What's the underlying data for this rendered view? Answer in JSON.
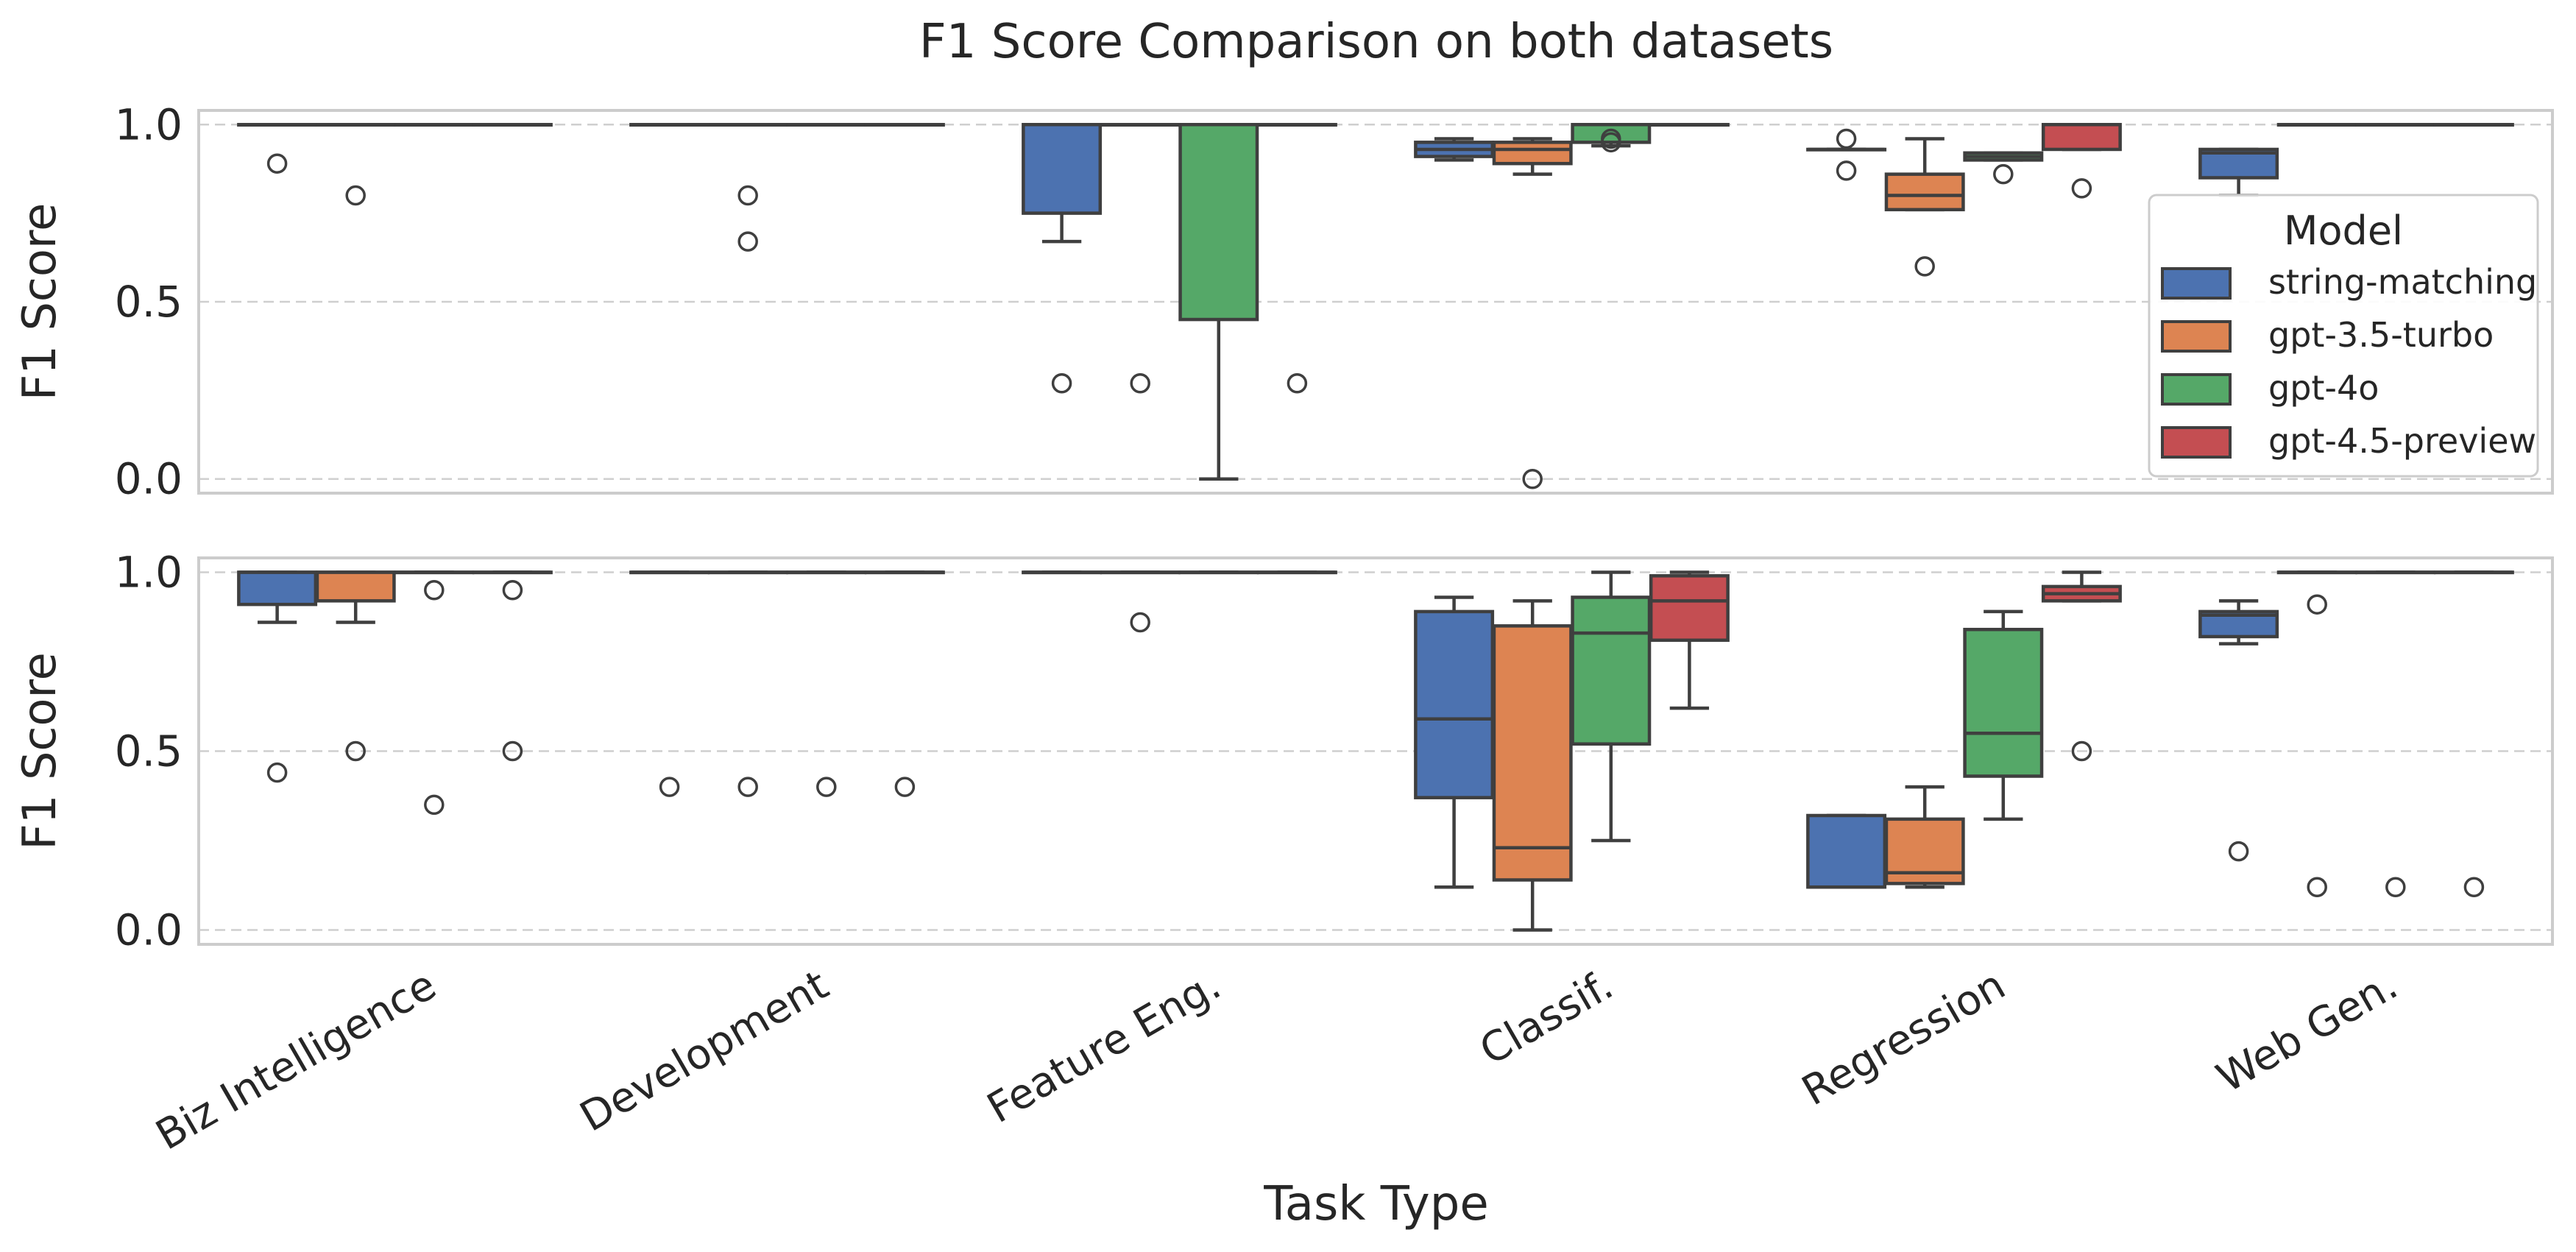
{
  "chart_data": {
    "type": "box",
    "title": "F1 Score Comparison on both datasets",
    "xlabel": "Task Type",
    "ylabel": "F1 Score",
    "categories": [
      "Biz Intelligence",
      "Development",
      "Feature Eng.",
      "Classif.",
      "Regression",
      "Web Gen."
    ],
    "yticks": [
      "0.0",
      "0.5",
      "1.0"
    ],
    "ylim": [
      -0.04,
      1.04
    ],
    "grid": "horizontal dashed",
    "legend": {
      "title": "Model",
      "placement": "upper-right of top panel",
      "entries": [
        "string-matching",
        "gpt-3.5-turbo",
        "gpt-4o",
        "gpt-4.5-preview"
      ]
    },
    "series_colors": {
      "string-matching": "#4c72b0",
      "gpt-3.5-turbo": "#dd8452",
      "gpt-4o": "#55a868",
      "gpt-4.5-preview": "#c44e52"
    },
    "panels": [
      {
        "name": "top",
        "boxes": [
          {
            "category": "Biz Intelligence",
            "series": "string-matching",
            "q1": 1.0,
            "median": 1.0,
            "q3": 1.0,
            "whislo": 1.0,
            "whishi": 1.0,
            "fliers": [
              0.89
            ]
          },
          {
            "category": "Biz Intelligence",
            "series": "gpt-3.5-turbo",
            "q1": 1.0,
            "median": 1.0,
            "q3": 1.0,
            "whislo": 1.0,
            "whishi": 1.0,
            "fliers": [
              0.8
            ]
          },
          {
            "category": "Biz Intelligence",
            "series": "gpt-4o",
            "q1": 1.0,
            "median": 1.0,
            "q3": 1.0,
            "whislo": 1.0,
            "whishi": 1.0,
            "fliers": []
          },
          {
            "category": "Biz Intelligence",
            "series": "gpt-4.5-preview",
            "q1": 1.0,
            "median": 1.0,
            "q3": 1.0,
            "whislo": 1.0,
            "whishi": 1.0,
            "fliers": []
          },
          {
            "category": "Development",
            "series": "string-matching",
            "q1": 1.0,
            "median": 1.0,
            "q3": 1.0,
            "whislo": 1.0,
            "whishi": 1.0,
            "fliers": []
          },
          {
            "category": "Development",
            "series": "gpt-3.5-turbo",
            "q1": 1.0,
            "median": 1.0,
            "q3": 1.0,
            "whislo": 1.0,
            "whishi": 1.0,
            "fliers": [
              0.8,
              0.67
            ]
          },
          {
            "category": "Development",
            "series": "gpt-4o",
            "q1": 1.0,
            "median": 1.0,
            "q3": 1.0,
            "whislo": 1.0,
            "whishi": 1.0,
            "fliers": []
          },
          {
            "category": "Development",
            "series": "gpt-4.5-preview",
            "q1": 1.0,
            "median": 1.0,
            "q3": 1.0,
            "whislo": 1.0,
            "whishi": 1.0,
            "fliers": []
          },
          {
            "category": "Feature Eng.",
            "series": "string-matching",
            "q1": 0.75,
            "median": 1.0,
            "q3": 1.0,
            "whislo": 0.67,
            "whishi": 1.0,
            "fliers": [
              0.27
            ]
          },
          {
            "category": "Feature Eng.",
            "series": "gpt-3.5-turbo",
            "q1": 1.0,
            "median": 1.0,
            "q3": 1.0,
            "whislo": 1.0,
            "whishi": 1.0,
            "fliers": [
              0.27
            ]
          },
          {
            "category": "Feature Eng.",
            "series": "gpt-4o",
            "q1": 0.45,
            "median": 1.0,
            "q3": 1.0,
            "whislo": 0.0,
            "whishi": 1.0,
            "fliers": []
          },
          {
            "category": "Feature Eng.",
            "series": "gpt-4.5-preview",
            "q1": 1.0,
            "median": 1.0,
            "q3": 1.0,
            "whislo": 1.0,
            "whishi": 1.0,
            "fliers": [
              0.27
            ]
          },
          {
            "category": "Classif.",
            "series": "string-matching",
            "q1": 0.91,
            "median": 0.93,
            "q3": 0.95,
            "whislo": 0.9,
            "whishi": 0.96,
            "fliers": []
          },
          {
            "category": "Classif.",
            "series": "gpt-3.5-turbo",
            "q1": 0.89,
            "median": 0.93,
            "q3": 0.95,
            "whislo": 0.86,
            "whishi": 0.96,
            "fliers": [
              0.0
            ]
          },
          {
            "category": "Classif.",
            "series": "gpt-4o",
            "q1": 0.95,
            "median": 1.0,
            "q3": 1.0,
            "whislo": 0.94,
            "whishi": 1.0,
            "fliers": [
              0.96,
              0.95
            ]
          },
          {
            "category": "Classif.",
            "series": "gpt-4.5-preview",
            "q1": 1.0,
            "median": 1.0,
            "q3": 1.0,
            "whislo": 1.0,
            "whishi": 1.0,
            "fliers": []
          },
          {
            "category": "Regression",
            "series": "string-matching",
            "q1": 0.93,
            "median": 0.93,
            "q3": 0.93,
            "whislo": 0.93,
            "whishi": 0.93,
            "fliers": [
              0.96,
              0.87
            ]
          },
          {
            "category": "Regression",
            "series": "gpt-3.5-turbo",
            "q1": 0.76,
            "median": 0.8,
            "q3": 0.86,
            "whislo": 0.76,
            "whishi": 0.96,
            "fliers": [
              0.6
            ]
          },
          {
            "category": "Regression",
            "series": "gpt-4o",
            "q1": 0.9,
            "median": 0.91,
            "q3": 0.92,
            "whislo": 0.9,
            "whishi": 0.92,
            "fliers": [
              0.86
            ]
          },
          {
            "category": "Regression",
            "series": "gpt-4.5-preview",
            "q1": 0.93,
            "median": 1.0,
            "q3": 1.0,
            "whislo": 0.93,
            "whishi": 1.0,
            "fliers": [
              0.82
            ]
          },
          {
            "category": "Web Gen.",
            "series": "string-matching",
            "q1": 0.85,
            "median": 0.92,
            "q3": 0.93,
            "whislo": 0.8,
            "whishi": 0.93,
            "fliers": []
          },
          {
            "category": "Web Gen.",
            "series": "gpt-3.5-turbo",
            "q1": 1.0,
            "median": 1.0,
            "q3": 1.0,
            "whislo": 1.0,
            "whishi": 1.0,
            "fliers": []
          },
          {
            "category": "Web Gen.",
            "series": "gpt-4o",
            "q1": 1.0,
            "median": 1.0,
            "q3": 1.0,
            "whislo": 1.0,
            "whishi": 1.0,
            "fliers": []
          },
          {
            "category": "Web Gen.",
            "series": "gpt-4.5-preview",
            "q1": 1.0,
            "median": 1.0,
            "q3": 1.0,
            "whislo": 1.0,
            "whishi": 1.0,
            "fliers": []
          }
        ]
      },
      {
        "name": "bottom",
        "boxes": [
          {
            "category": "Biz Intelligence",
            "series": "string-matching",
            "q1": 0.91,
            "median": 1.0,
            "q3": 1.0,
            "whislo": 0.86,
            "whishi": 1.0,
            "fliers": [
              0.44
            ]
          },
          {
            "category": "Biz Intelligence",
            "series": "gpt-3.5-turbo",
            "q1": 0.92,
            "median": 1.0,
            "q3": 1.0,
            "whislo": 0.86,
            "whishi": 1.0,
            "fliers": [
              0.5
            ]
          },
          {
            "category": "Biz Intelligence",
            "series": "gpt-4o",
            "q1": 1.0,
            "median": 1.0,
            "q3": 1.0,
            "whislo": 1.0,
            "whishi": 1.0,
            "fliers": [
              0.95,
              0.35
            ]
          },
          {
            "category": "Biz Intelligence",
            "series": "gpt-4.5-preview",
            "q1": 1.0,
            "median": 1.0,
            "q3": 1.0,
            "whislo": 1.0,
            "whishi": 1.0,
            "fliers": [
              0.95,
              0.5
            ]
          },
          {
            "category": "Development",
            "series": "string-matching",
            "q1": 1.0,
            "median": 1.0,
            "q3": 1.0,
            "whislo": 1.0,
            "whishi": 1.0,
            "fliers": [
              0.4
            ]
          },
          {
            "category": "Development",
            "series": "gpt-3.5-turbo",
            "q1": 1.0,
            "median": 1.0,
            "q3": 1.0,
            "whislo": 1.0,
            "whishi": 1.0,
            "fliers": [
              0.4
            ]
          },
          {
            "category": "Development",
            "series": "gpt-4o",
            "q1": 1.0,
            "median": 1.0,
            "q3": 1.0,
            "whislo": 1.0,
            "whishi": 1.0,
            "fliers": [
              0.4
            ]
          },
          {
            "category": "Development",
            "series": "gpt-4.5-preview",
            "q1": 1.0,
            "median": 1.0,
            "q3": 1.0,
            "whislo": 1.0,
            "whishi": 1.0,
            "fliers": [
              0.4
            ]
          },
          {
            "category": "Feature Eng.",
            "series": "string-matching",
            "q1": 1.0,
            "median": 1.0,
            "q3": 1.0,
            "whislo": 1.0,
            "whishi": 1.0,
            "fliers": []
          },
          {
            "category": "Feature Eng.",
            "series": "gpt-3.5-turbo",
            "q1": 1.0,
            "median": 1.0,
            "q3": 1.0,
            "whislo": 1.0,
            "whishi": 1.0,
            "fliers": [
              0.86
            ]
          },
          {
            "category": "Feature Eng.",
            "series": "gpt-4o",
            "q1": 1.0,
            "median": 1.0,
            "q3": 1.0,
            "whislo": 1.0,
            "whishi": 1.0,
            "fliers": []
          },
          {
            "category": "Feature Eng.",
            "series": "gpt-4.5-preview",
            "q1": 1.0,
            "median": 1.0,
            "q3": 1.0,
            "whislo": 1.0,
            "whishi": 1.0,
            "fliers": []
          },
          {
            "category": "Classif.",
            "series": "string-matching",
            "q1": 0.37,
            "median": 0.59,
            "q3": 0.89,
            "whislo": 0.12,
            "whishi": 0.93,
            "fliers": []
          },
          {
            "category": "Classif.",
            "series": "gpt-3.5-turbo",
            "q1": 0.14,
            "median": 0.23,
            "q3": 0.85,
            "whislo": 0.0,
            "whishi": 0.92,
            "fliers": []
          },
          {
            "category": "Classif.",
            "series": "gpt-4o",
            "q1": 0.52,
            "median": 0.83,
            "q3": 0.93,
            "whislo": 0.25,
            "whishi": 1.0,
            "fliers": []
          },
          {
            "category": "Classif.",
            "series": "gpt-4.5-preview",
            "q1": 0.81,
            "median": 0.92,
            "q3": 0.99,
            "whislo": 0.62,
            "whishi": 1.0,
            "fliers": []
          },
          {
            "category": "Regression",
            "series": "string-matching",
            "q1": 0.12,
            "median": 0.12,
            "q3": 0.32,
            "whislo": 0.12,
            "whishi": 0.32,
            "fliers": []
          },
          {
            "category": "Regression",
            "series": "gpt-3.5-turbo",
            "q1": 0.13,
            "median": 0.16,
            "q3": 0.31,
            "whislo": 0.12,
            "whishi": 0.4,
            "fliers": []
          },
          {
            "category": "Regression",
            "series": "gpt-4o",
            "q1": 0.43,
            "median": 0.55,
            "q3": 0.84,
            "whislo": 0.31,
            "whishi": 0.89,
            "fliers": []
          },
          {
            "category": "Regression",
            "series": "gpt-4.5-preview",
            "q1": 0.92,
            "median": 0.94,
            "q3": 0.96,
            "whislo": 0.92,
            "whishi": 1.0,
            "fliers": [
              0.5
            ]
          },
          {
            "category": "Web Gen.",
            "series": "string-matching",
            "q1": 0.82,
            "median": 0.88,
            "q3": 0.89,
            "whislo": 0.8,
            "whishi": 0.92,
            "fliers": [
              0.22
            ]
          },
          {
            "category": "Web Gen.",
            "series": "gpt-3.5-turbo",
            "q1": 1.0,
            "median": 1.0,
            "q3": 1.0,
            "whislo": 1.0,
            "whishi": 1.0,
            "fliers": [
              0.91,
              0.12
            ]
          },
          {
            "category": "Web Gen.",
            "series": "gpt-4o",
            "q1": 1.0,
            "median": 1.0,
            "q3": 1.0,
            "whislo": 1.0,
            "whishi": 1.0,
            "fliers": [
              0.12
            ]
          },
          {
            "category": "Web Gen.",
            "series": "gpt-4.5-preview",
            "q1": 1.0,
            "median": 1.0,
            "q3": 1.0,
            "whislo": 1.0,
            "whishi": 1.0,
            "fliers": [
              0.12
            ]
          }
        ]
      }
    ]
  }
}
